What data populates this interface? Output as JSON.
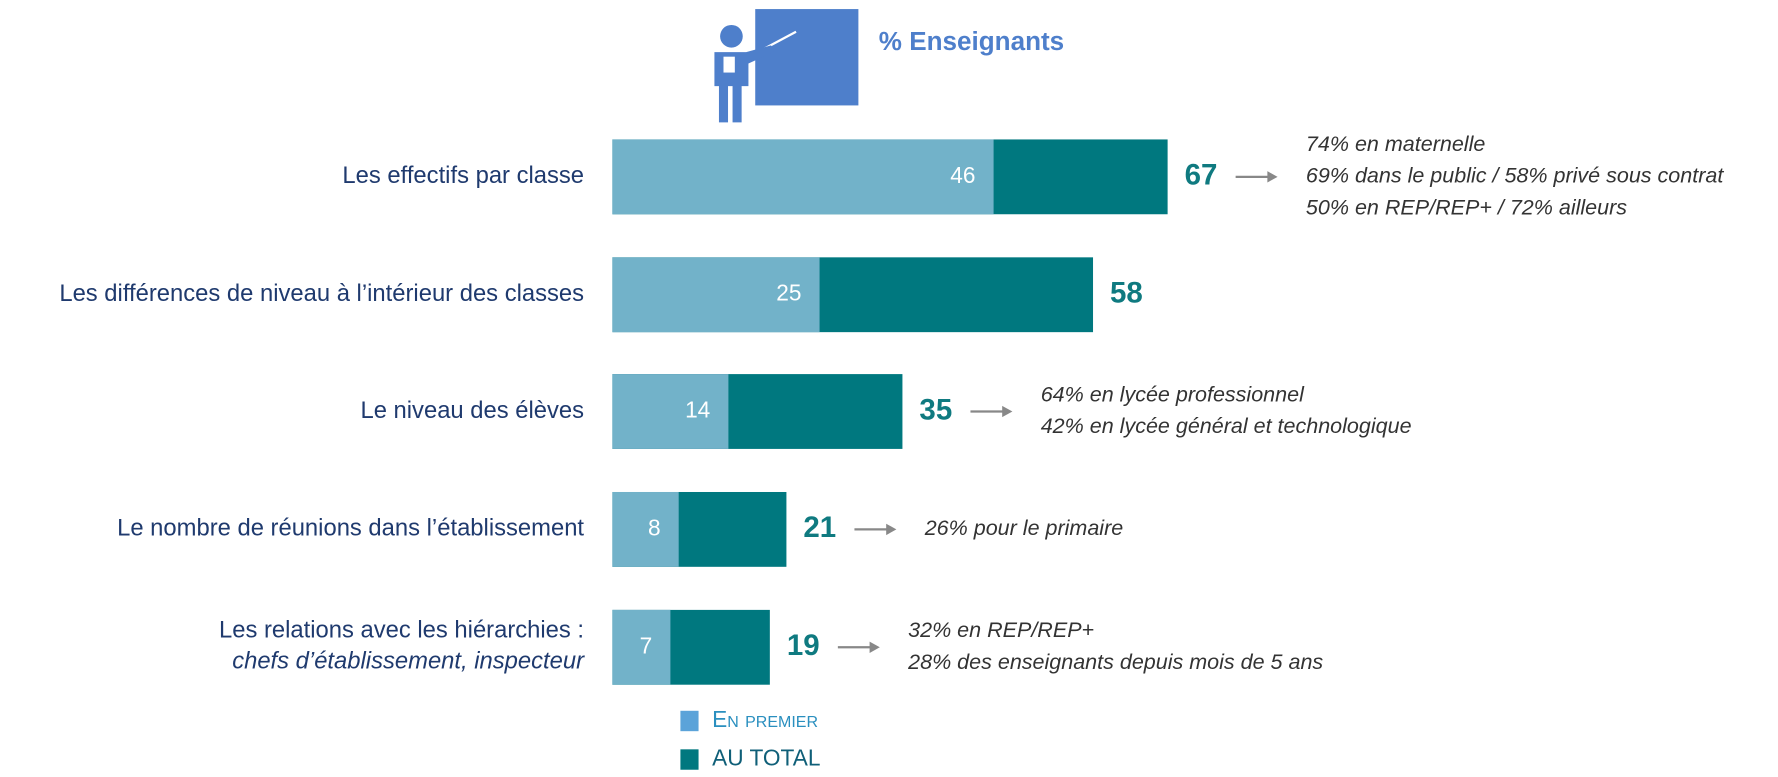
{
  "chart_data": {
    "type": "bar",
    "title": "% Enseignants",
    "categories": [
      "Les effectifs par classe",
      "Les différences de niveau à l’intérieur des classes",
      "Le niveau des élèves",
      "Le nombre de réunions dans l’établissement",
      "Les relations avec les hiérarchies :"
    ],
    "category_notes": [
      null,
      null,
      null,
      null,
      "chefs d’établissement, inspecteur"
    ],
    "series": [
      {
        "name": "En premier",
        "color": "#72b2c9",
        "values": [
          46,
          25,
          14,
          8,
          7
        ]
      },
      {
        "name": "AU TOTAL",
        "color": "#00787f",
        "values": [
          67,
          58,
          35,
          21,
          19
        ]
      }
    ],
    "annotations": [
      [
        "74% en maternelle",
        "69% dans le public / 58% privé sous contrat",
        "50% en REP/REP+ / 72% ailleurs"
      ],
      null,
      [
        "64% en lycée professionnel",
        "42% en lycée général et technologique"
      ],
      [
        "26% pour le primaire"
      ],
      [
        "32% en REP/REP+",
        "28% des enseignants depuis mois de 5 ans"
      ]
    ]
  }
}
